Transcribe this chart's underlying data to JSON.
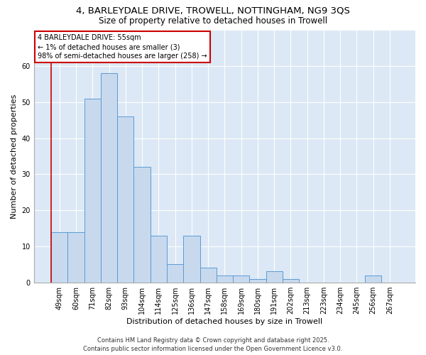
{
  "title1": "4, BARLEYDALE DRIVE, TROWELL, NOTTINGHAM, NG9 3QS",
  "title2": "Size of property relative to detached houses in Trowell",
  "xlabel": "Distribution of detached houses by size in Trowell",
  "ylabel": "Number of detached properties",
  "categories": [
    "49sqm",
    "60sqm",
    "71sqm",
    "82sqm",
    "93sqm",
    "104sqm",
    "114sqm",
    "125sqm",
    "136sqm",
    "147sqm",
    "158sqm",
    "169sqm",
    "180sqm",
    "191sqm",
    "202sqm",
    "213sqm",
    "223sqm",
    "234sqm",
    "245sqm",
    "256sqm",
    "267sqm"
  ],
  "values": [
    14,
    14,
    51,
    58,
    46,
    32,
    13,
    5,
    13,
    4,
    2,
    2,
    1,
    3,
    1,
    0,
    0,
    0,
    0,
    2,
    0
  ],
  "bar_color": "#c8d9ee",
  "bar_edge_color": "#5b9bd5",
  "ylim": [
    0,
    70
  ],
  "yticks": [
    0,
    10,
    20,
    30,
    40,
    50,
    60
  ],
  "annotation_text": "4 BARLEYDALE DRIVE: 55sqm\n← 1% of detached houses are smaller (3)\n98% of semi-detached houses are larger (258) →",
  "annotation_box_color": "#ffffff",
  "annotation_box_edge": "#cc0000",
  "red_line_color": "#cc0000",
  "background_color": "#dce8f5",
  "footer_text": "Contains HM Land Registry data © Crown copyright and database right 2025.\nContains public sector information licensed under the Open Government Licence v3.0.",
  "title_fontsize": 9.5,
  "subtitle_fontsize": 8.5,
  "axis_label_fontsize": 8,
  "tick_fontsize": 7,
  "footer_fontsize": 6
}
